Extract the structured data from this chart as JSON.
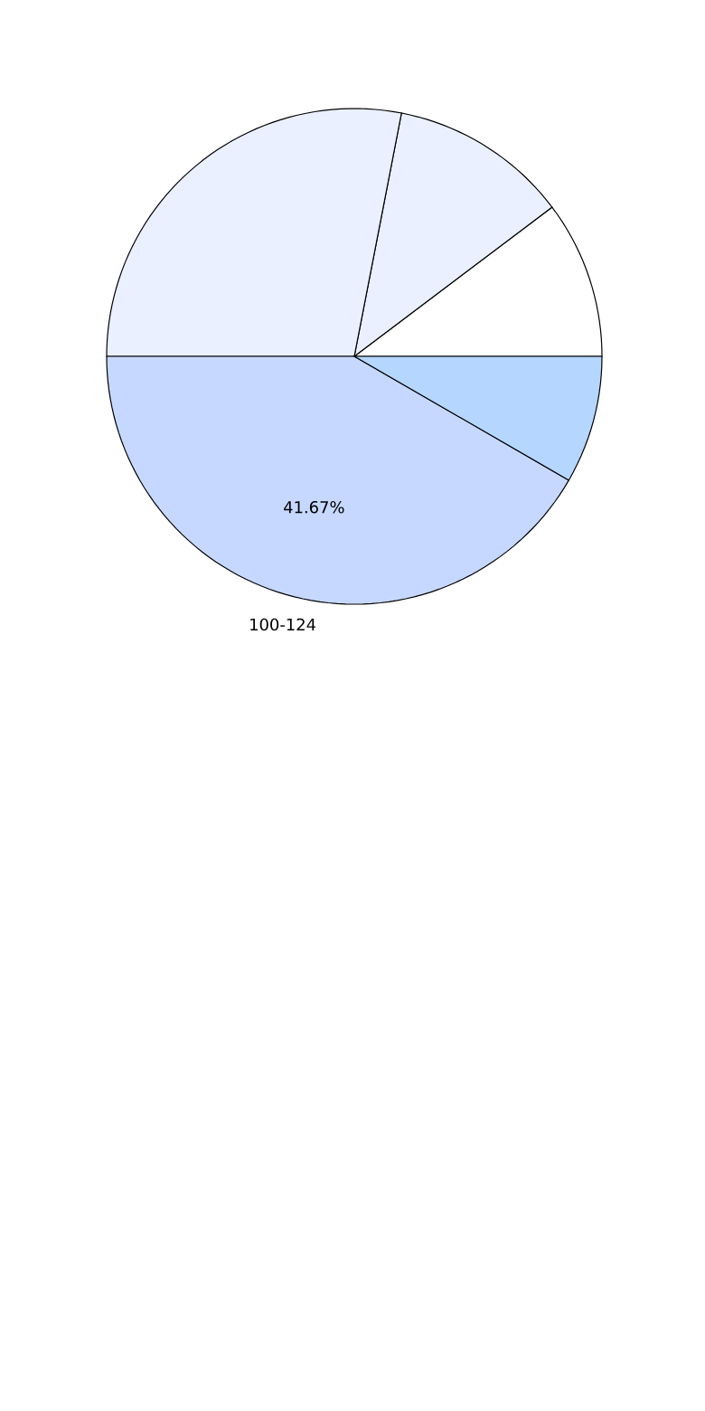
{
  "chart_data": {
    "type": "pie",
    "categories": [
      null,
      null,
      null,
      "100-124",
      null
    ],
    "values": [
      10.28,
      11.67,
      28.05,
      41.67,
      8.33
    ],
    "colors": [
      "#ffffff",
      "#eaf0ff",
      "#eaf0ff",
      "#c6d8ff",
      "#b5d6ff"
    ],
    "value_labels": [
      null,
      null,
      null,
      "41.67%",
      null
    ]
  }
}
